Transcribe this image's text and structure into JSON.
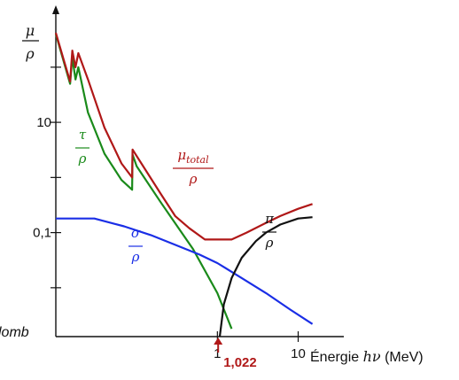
{
  "chart_data": {
    "type": "line",
    "title": "",
    "ylabel": {
      "num": "μ",
      "den": "ρ"
    },
    "xlabel": {
      "prefix": "Énergie ",
      "var": "hν",
      "unit": " (MeV)"
    },
    "x_scale": "log",
    "y_scale": "log",
    "xlim": [
      0.01,
      30
    ],
    "ylim": [
      0.0013,
      850
    ],
    "x_ticks": [
      {
        "value": 1,
        "label": "1"
      },
      {
        "value": 10,
        "label": "10"
      }
    ],
    "y_ticks": [
      {
        "value": 100,
        "label": ""
      },
      {
        "value": 10,
        "label": "10"
      },
      {
        "value": 1,
        "label": ""
      },
      {
        "value": 0.1,
        "label": "0,1"
      },
      {
        "value": 0.01,
        "label": ""
      }
    ],
    "side_label": "lomb",
    "marker": {
      "x": 1.022,
      "label": "1,022",
      "color": "#b01818"
    },
    "series": [
      {
        "id": "tau",
        "label_num": "τ",
        "label_den": "ρ",
        "color": "#1a8a1a",
        "points": [
          [
            0.01,
            400
          ],
          [
            0.015,
            50
          ],
          [
            0.016,
            150
          ],
          [
            0.0175,
            60
          ],
          [
            0.019,
            100
          ],
          [
            0.025,
            15
          ],
          [
            0.04,
            2.7
          ],
          [
            0.065,
            0.9
          ],
          [
            0.088,
            0.6
          ],
          [
            0.089,
            2.6
          ],
          [
            0.1,
            1.6
          ],
          [
            0.2,
            0.35
          ],
          [
            0.5,
            0.05
          ],
          [
            1,
            0.008
          ],
          [
            1.5,
            0.0018
          ]
        ]
      },
      {
        "id": "mu",
        "label_num": "μ",
        "label_sub": "total",
        "label_den": "ρ",
        "color": "#b01818",
        "points": [
          [
            0.01,
            420
          ],
          [
            0.015,
            55
          ],
          [
            0.016,
            200
          ],
          [
            0.0175,
            100
          ],
          [
            0.019,
            180
          ],
          [
            0.025,
            60
          ],
          [
            0.04,
            8
          ],
          [
            0.065,
            1.8
          ],
          [
            0.088,
            1.0
          ],
          [
            0.089,
            3.2
          ],
          [
            0.2,
            0.5
          ],
          [
            0.3,
            0.2
          ],
          [
            0.45,
            0.12
          ],
          [
            0.7,
            0.075
          ],
          [
            1,
            0.075
          ],
          [
            1.5,
            0.075
          ],
          [
            2.3,
            0.1
          ],
          [
            4,
            0.15
          ],
          [
            6,
            0.2
          ],
          [
            10,
            0.27
          ],
          [
            15,
            0.33
          ]
        ]
      },
      {
        "id": "sigma",
        "label_num": "σ",
        "label_den": "ρ",
        "color": "#1a2ee6",
        "points": [
          [
            0.01,
            0.18
          ],
          [
            0.03,
            0.18
          ],
          [
            0.07,
            0.13
          ],
          [
            0.15,
            0.09
          ],
          [
            0.3,
            0.06
          ],
          [
            0.6,
            0.04
          ],
          [
            1,
            0.028
          ],
          [
            2,
            0.015
          ],
          [
            4,
            0.008
          ],
          [
            8,
            0.004
          ],
          [
            15,
            0.0022
          ]
        ]
      },
      {
        "id": "pi",
        "label_num": "π",
        "label_den": "ρ",
        "color": "#111111",
        "points": [
          [
            1.07,
            0.0013
          ],
          [
            1.2,
            0.005
          ],
          [
            1.5,
            0.015
          ],
          [
            2,
            0.035
          ],
          [
            3,
            0.07
          ],
          [
            4,
            0.1
          ],
          [
            6,
            0.14
          ],
          [
            10,
            0.18
          ],
          [
            15,
            0.19
          ]
        ]
      }
    ]
  }
}
